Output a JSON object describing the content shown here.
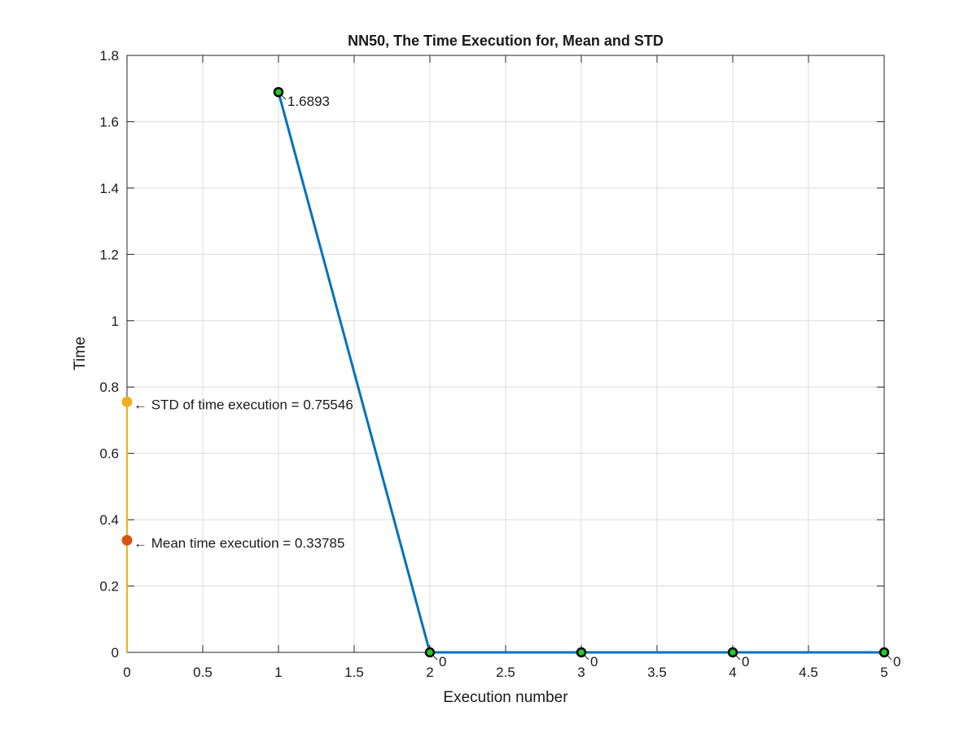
{
  "chart_data": {
    "type": "line",
    "title": "NN50, The Time Execution for, Mean and STD",
    "xlabel": "Execution number",
    "ylabel": "Time",
    "xlim": [
      0,
      5
    ],
    "ylim": [
      0,
      1.8
    ],
    "xticks": [
      "0",
      "0.5",
      "1",
      "1.5",
      "2",
      "2.5",
      "3",
      "3.5",
      "4",
      "4.5",
      "5"
    ],
    "yticks": [
      "0",
      "0.2",
      "0.4",
      "0.6",
      "0.8",
      "1",
      "1.2",
      "1.4",
      "1.6",
      "1.8"
    ],
    "grid": true,
    "series": [
      {
        "x": [
          1,
          2,
          3,
          4,
          5
        ],
        "values": [
          1.6893,
          0,
          0,
          0,
          0
        ],
        "labels": [
          "1.6893",
          "0",
          "0",
          "0",
          "0"
        ],
        "color": "#0072BD",
        "marker_face": "#22cc22",
        "marker_edge": "#000000"
      }
    ],
    "std_line": {
      "x": 0,
      "from": 0,
      "to": 0.75546,
      "color": "#EDB120"
    },
    "annotations": [
      {
        "x": 0,
        "y": 0.75546,
        "text": "← STD of time execution = 0.75546",
        "color": "#EDB120"
      },
      {
        "x": 0,
        "y": 0.33785,
        "text": "← Mean time execution = 0.33785",
        "color": "#D95319"
      }
    ]
  }
}
